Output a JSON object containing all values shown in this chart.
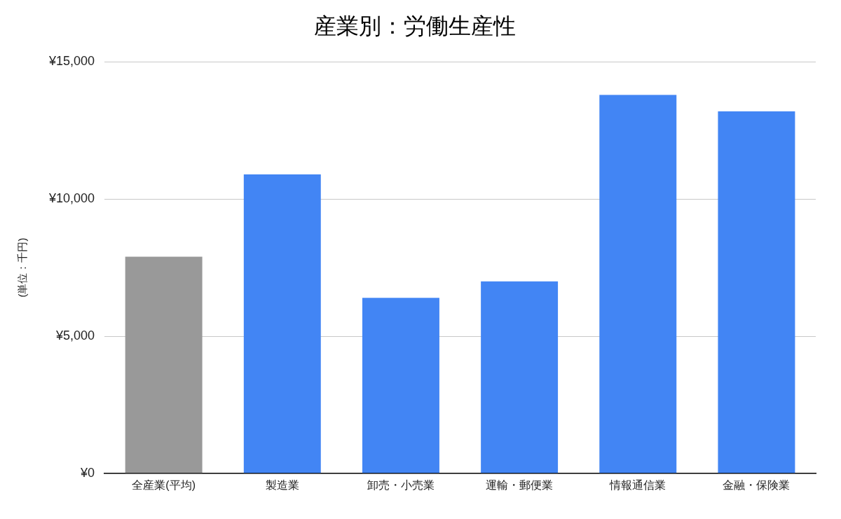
{
  "chart_data": {
    "type": "bar",
    "title": "産業別：労働生産性",
    "ylabel": "(単位：千円)",
    "categories": [
      "全産業(平均)",
      "製造業",
      "卸売・小売業",
      "運輸・郵便業",
      "情報通信業",
      "金融・保険業"
    ],
    "values": [
      7900,
      10900,
      6400,
      7000,
      13800,
      13200
    ],
    "colors": [
      "#999999",
      "#4285f4",
      "#4285f4",
      "#4285f4",
      "#4285f4",
      "#4285f4"
    ],
    "ylim": [
      0,
      15000
    ],
    "yticks": [
      {
        "value": 0,
        "label": "¥0"
      },
      {
        "value": 5000,
        "label": "¥5,000"
      },
      {
        "value": 10000,
        "label": "¥10,000"
      },
      {
        "value": 15000,
        "label": "¥15,000"
      }
    ],
    "grid": "y"
  }
}
